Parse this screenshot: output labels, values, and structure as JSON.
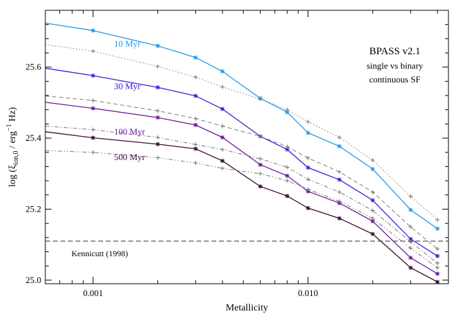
{
  "chart_data": {
    "type": "line",
    "xscale": "log",
    "xlim": [
      0.0006,
      0.045
    ],
    "ylim": [
      24.99,
      25.76
    ],
    "xlabel": "Metallicity",
    "ylabel_parts": {
      "prefix": "log (ξ",
      "sub": "ion,0",
      "mid": " / erg",
      "sup": "−1",
      "suffix": " Hz)"
    },
    "x_ticks": [
      {
        "value": 0.001,
        "label": "0.001"
      },
      {
        "value": 0.01,
        "label": "0.010"
      }
    ],
    "y_ticks": [
      {
        "value": 25.0,
        "label": "25.0"
      },
      {
        "value": 25.2,
        "label": "25.2"
      },
      {
        "value": 25.4,
        "label": "25.4"
      },
      {
        "value": 25.6,
        "label": "25.6"
      }
    ],
    "x": [
      0.0006,
      0.001,
      0.002,
      0.003,
      0.004,
      0.006,
      0.008,
      0.01,
      0.014,
      0.02,
      0.03,
      0.04
    ],
    "series": [
      {
        "name": "10 Myr",
        "kind": "binary",
        "color": "#1e9be8",
        "values": [
          25.724,
          25.703,
          25.66,
          25.627,
          25.588,
          25.512,
          25.473,
          25.415,
          25.377,
          25.313,
          25.198,
          25.145
        ]
      },
      {
        "kind": "single",
        "color": "#7a7a7a",
        "dash": "dot",
        "values": [
          25.663,
          25.645,
          25.602,
          25.572,
          25.544,
          25.51,
          25.48,
          25.446,
          25.402,
          25.338,
          25.236,
          25.17
        ]
      },
      {
        "name": "30 Myr",
        "kind": "binary",
        "color": "#3a20d6",
        "values": [
          25.597,
          25.576,
          25.543,
          25.519,
          25.482,
          25.405,
          25.368,
          25.317,
          25.283,
          25.225,
          25.116,
          25.068
        ]
      },
      {
        "kind": "single",
        "color": "#7a7a7a",
        "dash": "dash",
        "values": [
          25.519,
          25.506,
          25.477,
          25.455,
          25.434,
          25.405,
          25.376,
          25.344,
          25.305,
          25.248,
          25.15,
          25.088
        ]
      },
      {
        "name": "100 Myr",
        "kind": "binary",
        "color": "#6a1a9a",
        "values": [
          25.501,
          25.484,
          25.458,
          25.437,
          25.402,
          25.325,
          25.294,
          25.25,
          25.217,
          25.166,
          25.063,
          25.018
        ]
      },
      {
        "kind": "single",
        "color": "#7a7a7a",
        "dash": "dashdot",
        "values": [
          25.434,
          25.424,
          25.402,
          25.382,
          25.368,
          25.342,
          25.318,
          25.284,
          25.248,
          25.196,
          25.108,
          25.048
        ]
      },
      {
        "name": "500 Myr",
        "kind": "binary",
        "color": "#3a0a35",
        "values": [
          25.418,
          25.401,
          25.383,
          25.37,
          25.336,
          25.264,
          25.237,
          25.203,
          25.174,
          25.13,
          25.035,
          24.995
        ]
      },
      {
        "kind": "single",
        "color": "#7a7a7a",
        "dash": "dashdotdot",
        "values": [
          25.365,
          25.36,
          25.345,
          25.33,
          25.315,
          25.3,
          25.28,
          25.256,
          25.222,
          25.174,
          25.09,
          25.035
        ]
      }
    ],
    "reference_line": {
      "label": "Kennicutt (1998)",
      "y": 25.11,
      "style": "dash",
      "color": "#555555"
    },
    "annotation": {
      "title": "BPASS v2.1",
      "line2": "single vs binary",
      "line3": "continuous SF"
    },
    "grid": false
  }
}
